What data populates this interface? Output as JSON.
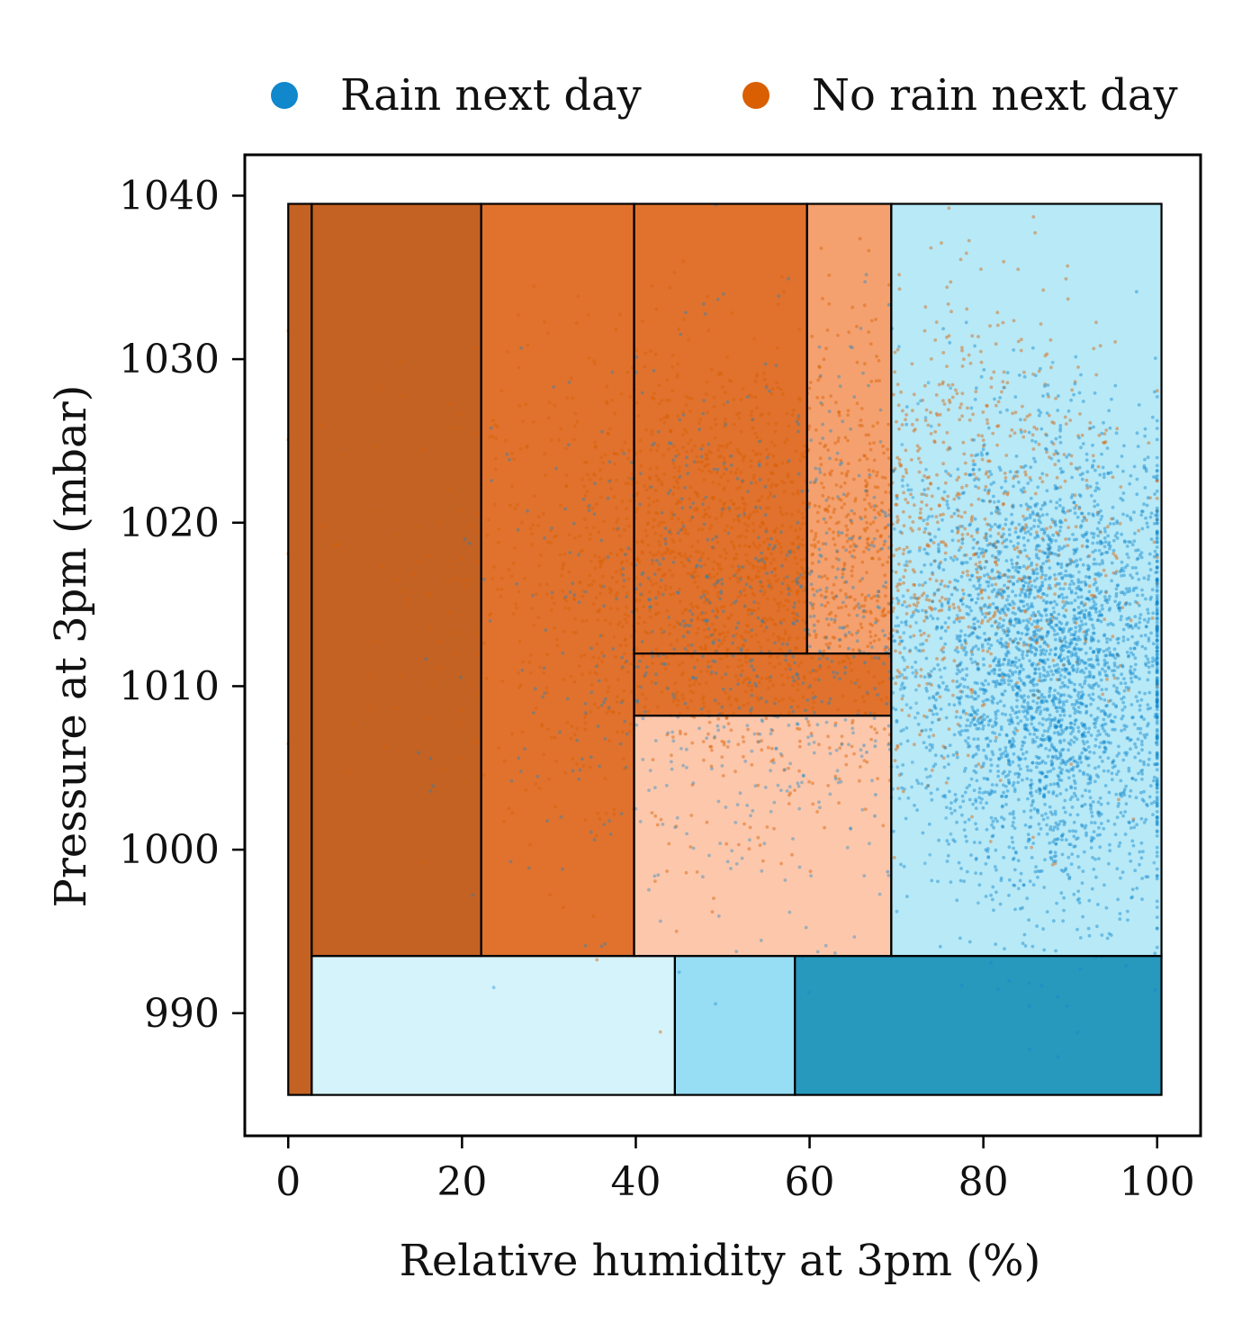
{
  "chart_data": {
    "type": "scatter",
    "title": "",
    "xlabel": "Relative humidity at 3pm (%)",
    "ylabel": "Pressure at 3pm (mbar)",
    "xlim": [
      -5,
      105
    ],
    "ylim": [
      982.5,
      1042.5
    ],
    "xticks": [
      0,
      20,
      40,
      60,
      80,
      100
    ],
    "yticks": [
      990,
      1000,
      1010,
      1020,
      1030,
      1040
    ],
    "grid": false,
    "legend": {
      "placement": "top-center, above plot",
      "entries": [
        {
          "label": "Rain next day",
          "color": "#1187cc"
        },
        {
          "label": "No rain next day",
          "color": "#d95f02"
        }
      ]
    },
    "series": [
      {
        "name": "Rain next day",
        "color": "#1187cc",
        "density_center": {
          "x": 88,
          "y": 1011
        },
        "note_points": "dense cloud of semi-transparent points"
      },
      {
        "name": "No rain next day",
        "color": "#d95f02",
        "density_center": {
          "x": 55,
          "y": 1016
        },
        "note_points": "dense cloud of semi-transparent points"
      }
    ],
    "decision_regions": [
      {
        "x0": 0,
        "x1": 2.7,
        "y0": 985,
        "y1": 1039.5,
        "fill": "#c46223"
      },
      {
        "x0": 2.7,
        "x1": 22.2,
        "y0": 993.5,
        "y1": 1039.5,
        "fill": "#c46223"
      },
      {
        "x0": 22.2,
        "x1": 39.8,
        "y0": 993.5,
        "y1": 1039.5,
        "fill": "#e0722e"
      },
      {
        "x0": 39.8,
        "x1": 59.7,
        "y0": 1012,
        "y1": 1039.5,
        "fill": "#e0722e"
      },
      {
        "x0": 59.7,
        "x1": 69.4,
        "y0": 1012,
        "y1": 1039.5,
        "fill": "#f4a16f"
      },
      {
        "x0": 39.8,
        "x1": 69.4,
        "y0": 1008.2,
        "y1": 1012,
        "fill": "#e0722e"
      },
      {
        "x0": 39.8,
        "x1": 69.4,
        "y0": 993.5,
        "y1": 1008.2,
        "fill": "#fcc7ab"
      },
      {
        "x0": 69.4,
        "x1": 100.5,
        "y0": 993.5,
        "y1": 1039.5,
        "fill": "#b7e9f7"
      },
      {
        "x0": 2.7,
        "x1": 44.5,
        "y0": 985,
        "y1": 993.5,
        "fill": "#d5f3fb"
      },
      {
        "x0": 44.5,
        "x1": 58.3,
        "y0": 985,
        "y1": 993.5,
        "fill": "#97ddf3"
      },
      {
        "x0": 58.3,
        "x1": 100.5,
        "y0": 985,
        "y1": 993.5,
        "fill": "#2699bd"
      }
    ]
  }
}
